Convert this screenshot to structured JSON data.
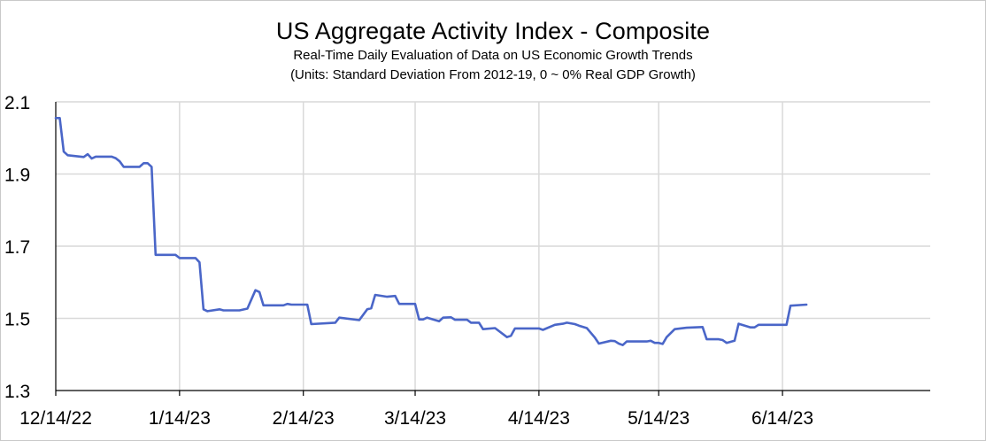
{
  "chart_data": {
    "type": "line",
    "title": "US Aggregate Activity Index - Composite",
    "subtitle": "Real-Time Daily Evaluation of Data on US Economic Growth Trends",
    "subtitle2": "(Units: Standard Deviation From 2012-19, 0 ~ 0% Real GDP Growth)",
    "xlabel": "",
    "ylabel": "",
    "ylim": [
      1.3,
      2.1
    ],
    "yticks": [
      "2.1",
      "1.9",
      "1.7",
      "1.5",
      "1.3"
    ],
    "ytick_values": [
      2.1,
      1.9,
      1.7,
      1.5,
      1.3
    ],
    "xlim": [
      "2022-12-14",
      "2023-07-21"
    ],
    "xticks": [
      "12/14/22",
      "1/14/23",
      "2/14/23",
      "3/14/23",
      "4/14/23",
      "5/14/23",
      "6/14/23"
    ],
    "xtick_dates": [
      "2022-12-14",
      "2023-01-14",
      "2023-02-14",
      "2023-03-14",
      "2023-04-14",
      "2023-05-14",
      "2023-06-14"
    ],
    "grid": true,
    "line_color": "#4a66c8",
    "series": [
      {
        "points": [
          [
            "2022-12-14",
            2.055
          ],
          [
            "2022-12-15",
            2.055
          ],
          [
            "2022-12-16",
            1.962
          ],
          [
            "2022-12-17",
            1.952
          ],
          [
            "2022-12-21",
            1.947
          ],
          [
            "2022-12-22",
            1.955
          ],
          [
            "2022-12-23",
            1.943
          ],
          [
            "2022-12-24",
            1.948
          ],
          [
            "2022-12-28",
            1.948
          ],
          [
            "2022-12-29",
            1.944
          ],
          [
            "2022-12-30",
            1.935
          ],
          [
            "2022-12-31",
            1.92
          ],
          [
            "2023-01-03",
            1.92
          ],
          [
            "2023-01-04",
            1.92
          ],
          [
            "2023-01-05",
            1.93
          ],
          [
            "2023-01-06",
            1.93
          ],
          [
            "2023-01-07",
            1.92
          ],
          [
            "2023-01-08",
            1.676
          ],
          [
            "2023-01-13",
            1.676
          ],
          [
            "2023-01-14",
            1.667
          ],
          [
            "2023-01-18",
            1.667
          ],
          [
            "2023-01-19",
            1.655
          ],
          [
            "2023-01-20",
            1.525
          ],
          [
            "2023-01-21",
            1.52
          ],
          [
            "2023-01-24",
            1.525
          ],
          [
            "2023-01-25",
            1.522
          ],
          [
            "2023-01-29",
            1.522
          ],
          [
            "2023-01-31",
            1.527
          ],
          [
            "2023-02-02",
            1.578
          ],
          [
            "2023-02-03",
            1.573
          ],
          [
            "2023-02-04",
            1.536
          ],
          [
            "2023-02-09",
            1.536
          ],
          [
            "2023-02-10",
            1.54
          ],
          [
            "2023-02-11",
            1.538
          ],
          [
            "2023-02-15",
            1.538
          ],
          [
            "2023-02-16",
            1.484
          ],
          [
            "2023-02-22",
            1.488
          ],
          [
            "2023-02-23",
            1.502
          ],
          [
            "2023-02-28",
            1.495
          ],
          [
            "2023-03-02",
            1.525
          ],
          [
            "2023-03-03",
            1.528
          ],
          [
            "2023-03-04",
            1.565
          ],
          [
            "2023-03-07",
            1.56
          ],
          [
            "2023-03-09",
            1.562
          ],
          [
            "2023-03-10",
            1.54
          ],
          [
            "2023-03-14",
            1.54
          ],
          [
            "2023-03-15",
            1.497
          ],
          [
            "2023-03-16",
            1.497
          ],
          [
            "2023-03-17",
            1.502
          ],
          [
            "2023-03-20",
            1.492
          ],
          [
            "2023-03-21",
            1.502
          ],
          [
            "2023-03-23",
            1.503
          ],
          [
            "2023-03-24",
            1.496
          ],
          [
            "2023-03-27",
            1.496
          ],
          [
            "2023-03-28",
            1.488
          ],
          [
            "2023-03-30",
            1.488
          ],
          [
            "2023-03-31",
            1.47
          ],
          [
            "2023-04-03",
            1.473
          ],
          [
            "2023-04-06",
            1.448
          ],
          [
            "2023-04-07",
            1.452
          ],
          [
            "2023-04-08",
            1.472
          ],
          [
            "2023-04-14",
            1.472
          ],
          [
            "2023-04-15",
            1.468
          ],
          [
            "2023-04-18",
            1.482
          ],
          [
            "2023-04-20",
            1.485
          ],
          [
            "2023-04-21",
            1.488
          ],
          [
            "2023-04-23",
            1.484
          ],
          [
            "2023-04-24",
            1.48
          ],
          [
            "2023-04-26",
            1.473
          ],
          [
            "2023-04-27",
            1.46
          ],
          [
            "2023-04-28",
            1.447
          ],
          [
            "2023-04-29",
            1.43
          ],
          [
            "2023-05-02",
            1.438
          ],
          [
            "2023-05-03",
            1.437
          ],
          [
            "2023-05-04",
            1.43
          ],
          [
            "2023-05-05",
            1.426
          ],
          [
            "2023-05-06",
            1.436
          ],
          [
            "2023-05-11",
            1.436
          ],
          [
            "2023-05-12",
            1.438
          ],
          [
            "2023-05-13",
            1.432
          ],
          [
            "2023-05-14",
            1.432
          ],
          [
            "2023-05-15",
            1.429
          ],
          [
            "2023-05-16",
            1.448
          ],
          [
            "2023-05-18",
            1.47
          ],
          [
            "2023-05-21",
            1.474
          ],
          [
            "2023-05-25",
            1.476
          ],
          [
            "2023-05-26",
            1.442
          ],
          [
            "2023-05-29",
            1.442
          ],
          [
            "2023-05-30",
            1.44
          ],
          [
            "2023-05-31",
            1.432
          ],
          [
            "2023-06-02",
            1.438
          ],
          [
            "2023-06-03",
            1.485
          ],
          [
            "2023-06-06",
            1.475
          ],
          [
            "2023-06-07",
            1.475
          ],
          [
            "2023-06-08",
            1.482
          ],
          [
            "2023-06-15",
            1.482
          ],
          [
            "2023-06-16",
            1.535
          ],
          [
            "2023-06-20",
            1.538
          ]
        ]
      }
    ]
  }
}
